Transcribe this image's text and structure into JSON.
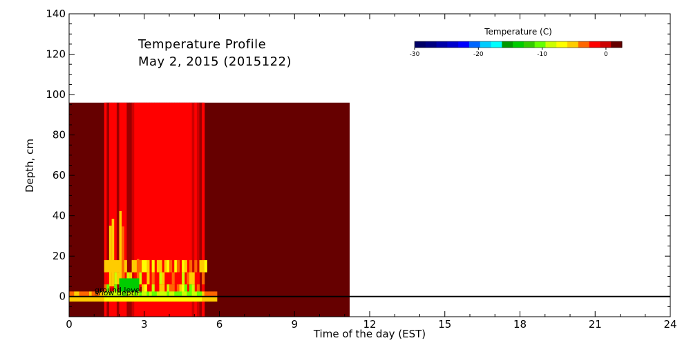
{
  "chart_data": {
    "type": "heatmap",
    "title_line1": "Temperature Profile",
    "title_line2": "May  2, 2015 (2015122)",
    "xlabel": "Time of the day (EST)",
    "ylabel": "Depth, cm",
    "xlim": [
      0,
      24
    ],
    "ylim": [
      -10,
      140
    ],
    "x_ticks": [
      "0",
      "3",
      "6",
      "9",
      "12",
      "15",
      "18",
      "21",
      "24"
    ],
    "y_ticks": [
      "0",
      "20",
      "40",
      "60",
      "80",
      "100",
      "120",
      "140"
    ],
    "colorbar": {
      "title": "Temperature (C)",
      "range": [
        -30,
        2.5
      ],
      "tick_labels": [
        "-30",
        "-20",
        "-10",
        "0"
      ],
      "colors": [
        "#000066",
        "#000080",
        "#0000a8",
        "#0000cc",
        "#0000ff",
        "#0066ff",
        "#00ccff",
        "#00ffff",
        "#009900",
        "#00cc00",
        "#33cc00",
        "#66ff00",
        "#ccff00",
        "#ffff00",
        "#ffcc00",
        "#ff6600",
        "#ff0000",
        "#cc0000",
        "#660000"
      ]
    },
    "data_extent": {
      "time_range": [
        0,
        11.2
      ],
      "depth_range": [
        -10,
        96
      ]
    },
    "reference_lines": [
      {
        "label": "ground level",
        "depth": 0
      },
      {
        "label": "snow depth",
        "depth": 0
      }
    ],
    "warm_band": {
      "time_range": [
        1.4,
        5.3
      ],
      "color": "#ff0000"
    },
    "background_color": "#660000"
  }
}
